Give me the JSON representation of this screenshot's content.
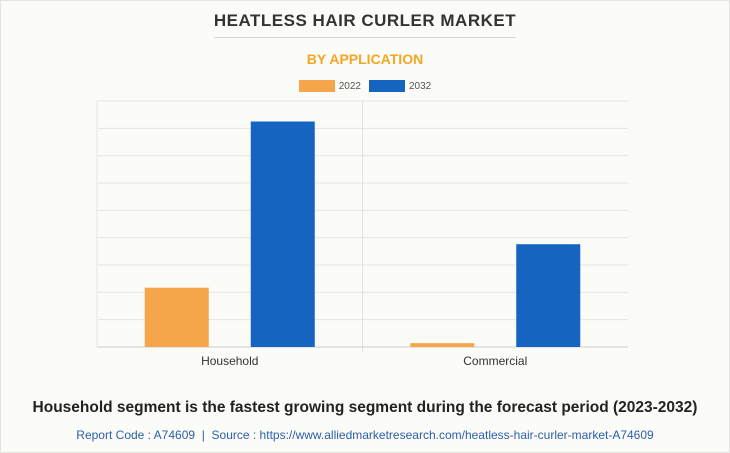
{
  "title": "HEATLESS HAIR CURLER MARKET",
  "subtitle": "BY APPLICATION",
  "caption": "Household segment is the fastest growing segment during the forecast period (2023-2032)",
  "footer": {
    "report_code": "Report Code : A74609",
    "separator": "|",
    "source": "Source : https://www.alliedmarketresearch.com/heatless-hair-curler-market-A74609"
  },
  "colors": {
    "series_2022": "#f5a54a",
    "series_2032": "#1565c0",
    "grid": "#e4e4e4",
    "axis": "#cccccc"
  },
  "chart_data": {
    "type": "bar",
    "categories": [
      "Household",
      "Commercial"
    ],
    "series": [
      {
        "name": "2022",
        "values": [
          21.7,
          1.4
        ]
      },
      {
        "name": "2032",
        "values": [
          82.5,
          37.6
        ]
      }
    ],
    "ylim": [
      0,
      90
    ],
    "grid": true,
    "legend": "top-center"
  }
}
